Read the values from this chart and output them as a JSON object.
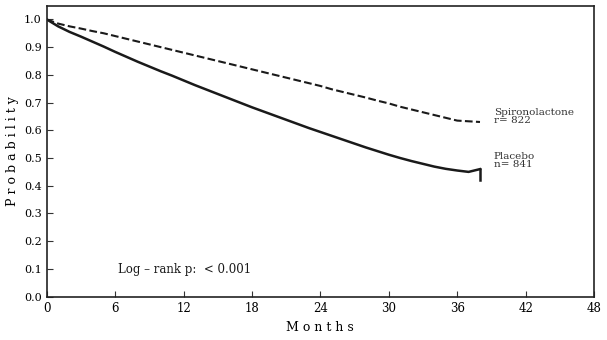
{
  "xlabel": "M o n t h s",
  "ylabel": "P r o b a b i l i t y",
  "xlim": [
    0,
    48
  ],
  "ylim": [
    0.0,
    1.05
  ],
  "xticks": [
    0,
    6,
    12,
    18,
    24,
    30,
    36,
    42,
    48
  ],
  "yticks": [
    0.0,
    0.1,
    0.2,
    0.3,
    0.4,
    0.5,
    0.6,
    0.7,
    0.8,
    0.9,
    1.0
  ],
  "spiro_label_line1": "Spironolactone",
  "spiro_label_line2": "r= 822",
  "placebo_label_line1": "Placebo",
  "placebo_label_line2": "n= 841",
  "logrank_text": "Log – rank p:  < 0.001",
  "background_color": "#ffffff",
  "line_color": "#1a1a1a",
  "spiro_x": [
    0,
    1,
    2,
    3,
    4,
    5,
    6,
    7,
    8,
    9,
    10,
    11,
    12,
    13,
    14,
    15,
    16,
    17,
    18,
    19,
    20,
    21,
    22,
    23,
    24,
    25,
    26,
    27,
    28,
    29,
    30,
    31,
    32,
    33,
    34,
    35,
    36,
    38
  ],
  "spiro_y": [
    1.0,
    0.985,
    0.975,
    0.967,
    0.958,
    0.95,
    0.94,
    0.93,
    0.92,
    0.91,
    0.9,
    0.89,
    0.88,
    0.87,
    0.86,
    0.85,
    0.84,
    0.83,
    0.82,
    0.81,
    0.8,
    0.79,
    0.78,
    0.77,
    0.76,
    0.748,
    0.738,
    0.728,
    0.718,
    0.707,
    0.697,
    0.685,
    0.675,
    0.665,
    0.655,
    0.645,
    0.635,
    0.63
  ],
  "placebo_x": [
    0,
    1,
    2,
    3,
    4,
    5,
    6,
    7,
    8,
    9,
    10,
    11,
    12,
    13,
    14,
    15,
    16,
    17,
    18,
    19,
    20,
    21,
    22,
    23,
    24,
    25,
    26,
    27,
    28,
    29,
    30,
    31,
    32,
    33,
    34,
    35,
    36,
    37,
    38
  ],
  "placebo_y": [
    1.0,
    0.975,
    0.955,
    0.938,
    0.92,
    0.902,
    0.883,
    0.865,
    0.847,
    0.83,
    0.813,
    0.797,
    0.78,
    0.763,
    0.747,
    0.731,
    0.715,
    0.699,
    0.683,
    0.668,
    0.653,
    0.638,
    0.623,
    0.608,
    0.594,
    0.58,
    0.566,
    0.552,
    0.538,
    0.525,
    0.512,
    0.5,
    0.489,
    0.479,
    0.469,
    0.461,
    0.455,
    0.45,
    0.46
  ]
}
